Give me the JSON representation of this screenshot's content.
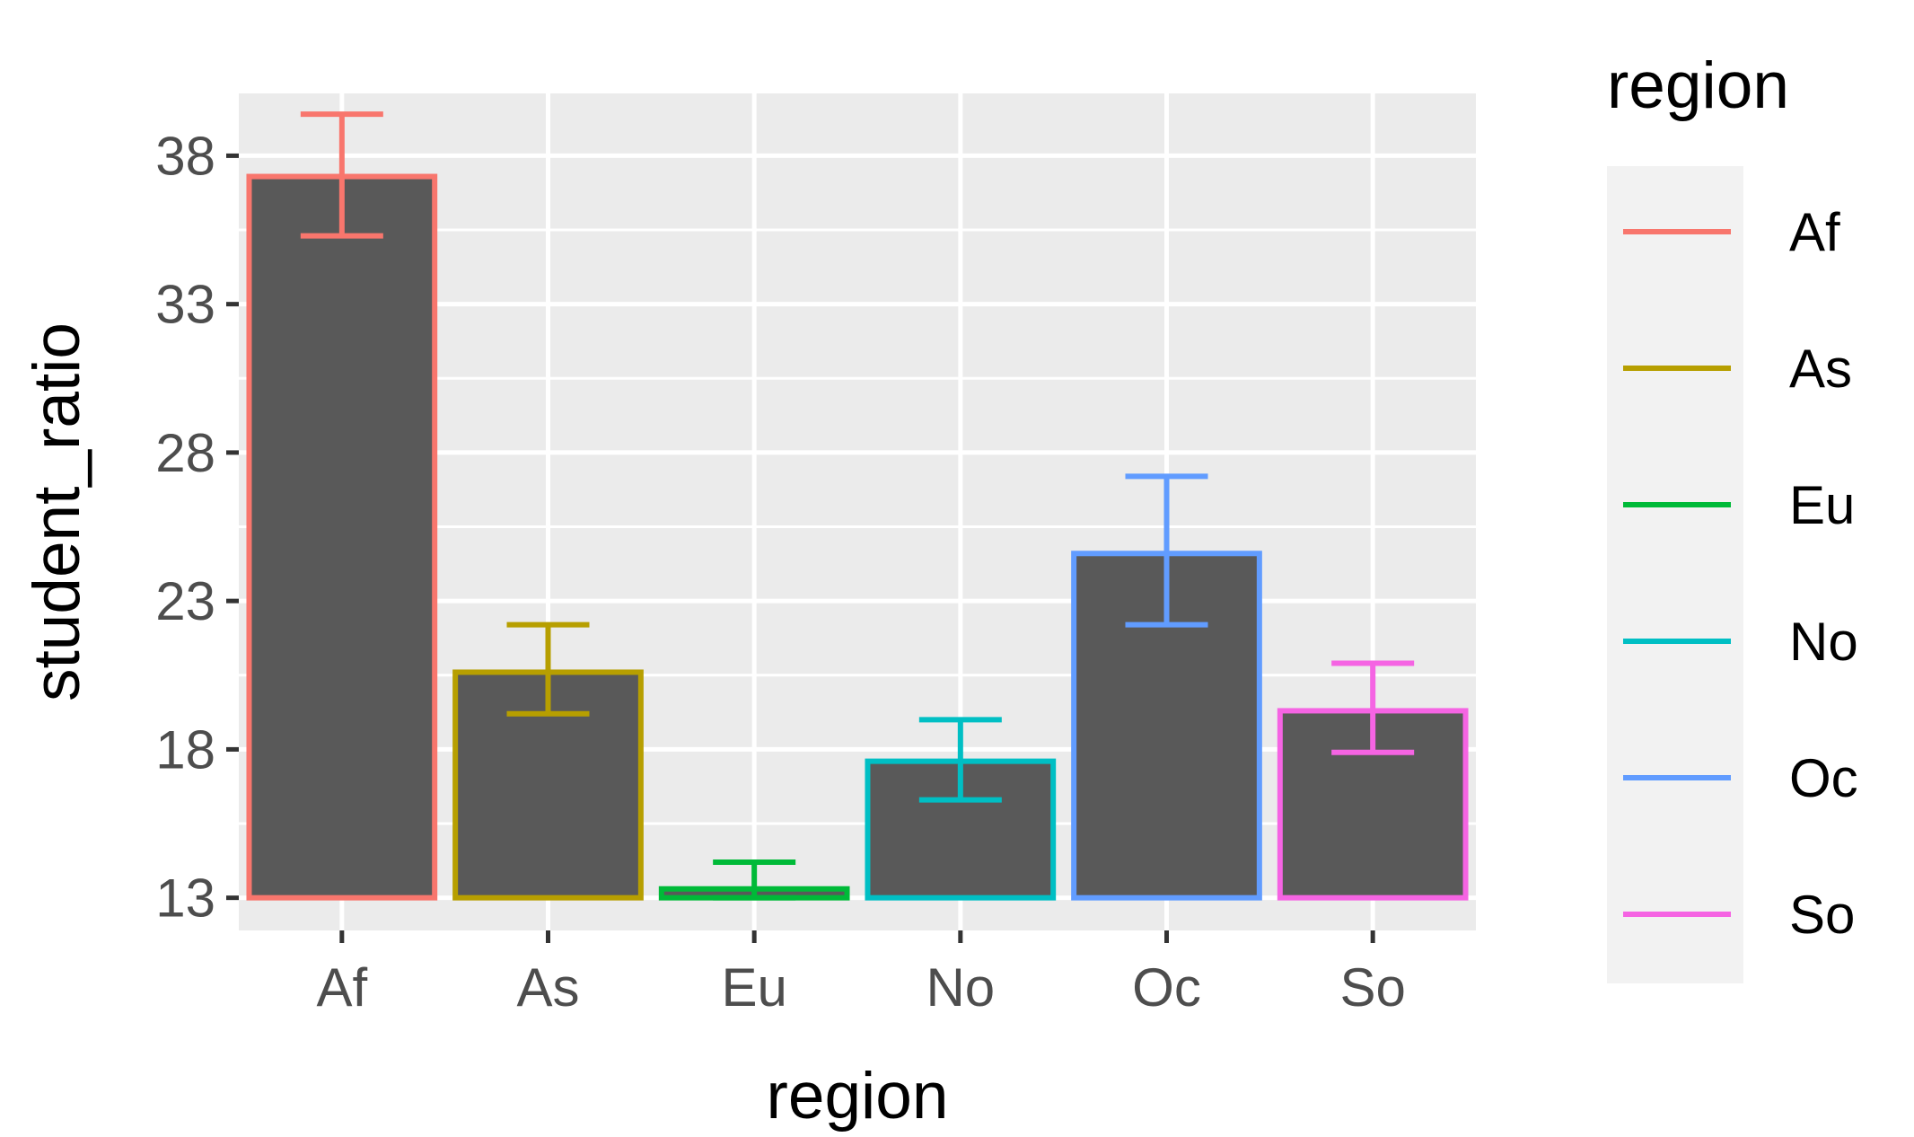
{
  "chart_data": {
    "type": "bar",
    "title": "",
    "xlabel": "region",
    "ylabel": "student_ratio",
    "categories": [
      "Af",
      "As",
      "Eu",
      "No",
      "Oc",
      "So"
    ],
    "values": [
      37.3,
      20.6,
      13.3,
      17.6,
      24.6,
      19.3
    ],
    "error_low": [
      35.3,
      19.2,
      13.0,
      16.3,
      22.2,
      17.9
    ],
    "error_high": [
      39.4,
      22.2,
      14.2,
      19.0,
      27.2,
      20.9
    ],
    "ylim": [
      11.9,
      40.1
    ],
    "y_ticks": [
      13,
      18,
      23,
      28,
      33,
      38
    ],
    "y_tick_labels": [
      "13",
      "18",
      "23",
      "28",
      "33",
      "38"
    ],
    "bar_fill": "#595959",
    "panel_background": "#ebebeb",
    "grid": true,
    "legend": {
      "title": "region",
      "placement": "right",
      "entries": [
        "Af",
        "As",
        "Eu",
        "No",
        "Oc",
        "So"
      ]
    },
    "colors": [
      "#F8766D",
      "#B79F00",
      "#00BA38",
      "#00BFC4",
      "#619CFF",
      "#F564E3"
    ]
  }
}
